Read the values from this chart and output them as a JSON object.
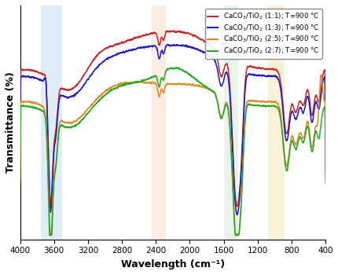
{
  "xlabel": "Wavelength (cm⁻¹)",
  "ylabel": "Transmittance (%)",
  "xmin": 400,
  "xmax": 4000,
  "legend": [
    {
      "label": "CaCO$_3$/TiO$_2$ (1:1); T=900 °C",
      "color": "#cc2222"
    },
    {
      "label": "CaCO$_3$/TiO$_2$ (1:3); T=900 °C",
      "color": "#1a1acc"
    },
    {
      "label": "CaCO$_3$/TiO$_2$ (2:5); T=900 °C",
      "color": "#e08820"
    },
    {
      "label": "CaCO$_3$/TiO$_2$ (2:7); T=900 °C",
      "color": "#22aa22"
    }
  ],
  "shaded_regions": [
    {
      "xmin": 3500,
      "xmax": 3750,
      "color": "#b8d8f0",
      "alpha": 0.45
    },
    {
      "xmin": 2280,
      "xmax": 2450,
      "color": "#f5c8a8",
      "alpha": 0.35
    },
    {
      "xmin": 1430,
      "xmax": 1600,
      "color": "#c0e0c0",
      "alpha": 0.35
    },
    {
      "xmin": 880,
      "xmax": 1080,
      "color": "#f0d890",
      "alpha": 0.35
    }
  ]
}
